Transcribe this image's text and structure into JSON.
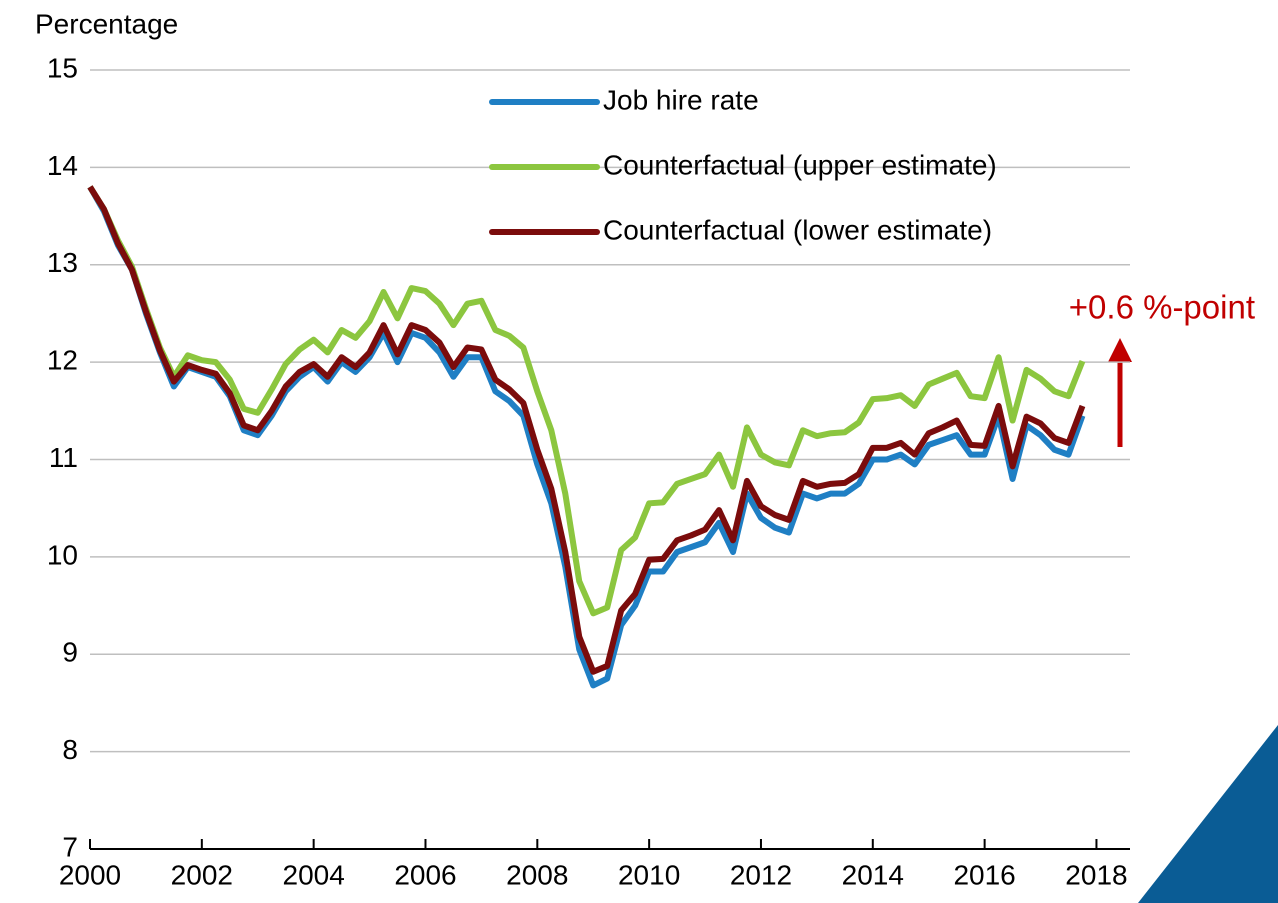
{
  "chart_data": {
    "type": "line",
    "y_label": "Percentage",
    "annotation": "+0.6 %-point",
    "x": [
      2000,
      2000.25,
      2000.5,
      2000.75,
      2001,
      2001.25,
      2001.5,
      2001.75,
      2002,
      2002.25,
      2002.5,
      2002.75,
      2003,
      2003.25,
      2003.5,
      2003.75,
      2004,
      2004.25,
      2004.5,
      2004.75,
      2005,
      2005.25,
      2005.5,
      2005.75,
      2006,
      2006.25,
      2006.5,
      2006.75,
      2007,
      2007.25,
      2007.5,
      2007.75,
      2008,
      2008.25,
      2008.5,
      2008.75,
      2009,
      2009.25,
      2009.5,
      2009.75,
      2010,
      2010.25,
      2010.5,
      2010.75,
      2011,
      2011.25,
      2011.5,
      2011.75,
      2012,
      2012.25,
      2012.5,
      2012.75,
      2013,
      2013.25,
      2013.5,
      2013.75,
      2014,
      2014.25,
      2014.5,
      2014.75,
      2015,
      2015.25,
      2015.5,
      2015.75,
      2016,
      2016.25,
      2016.5,
      2016.75,
      2017,
      2017.25,
      2017.5,
      2017.75
    ],
    "series": [
      {
        "name": "Job hire rate",
        "color": "#1f7fc4",
        "values": [
          13.8,
          13.55,
          13.2,
          12.95,
          12.5,
          12.1,
          11.75,
          11.95,
          11.9,
          11.85,
          11.65,
          11.3,
          11.25,
          11.45,
          11.7,
          11.85,
          11.95,
          11.8,
          12.0,
          11.9,
          12.05,
          12.3,
          12.0,
          12.3,
          12.25,
          12.1,
          11.85,
          12.05,
          12.05,
          11.7,
          11.6,
          11.45,
          10.95,
          10.55,
          9.9,
          9.05,
          8.68,
          8.75,
          9.3,
          9.5,
          9.85,
          9.85,
          10.05,
          10.1,
          10.15,
          10.35,
          10.05,
          10.65,
          10.4,
          10.3,
          10.25,
          10.65,
          10.6,
          10.65,
          10.65,
          10.75,
          11.0,
          11.0,
          11.05,
          10.95,
          11.15,
          11.2,
          11.25,
          11.05,
          11.05,
          11.45,
          10.8,
          11.35,
          11.25,
          11.1,
          11.05,
          11.45
        ]
      },
      {
        "name": "Counterfactual (upper estimate)",
        "color": "#8cc63f",
        "values": [
          13.8,
          13.57,
          13.25,
          12.98,
          12.55,
          12.15,
          11.85,
          12.07,
          12.02,
          12.0,
          11.82,
          11.52,
          11.48,
          11.72,
          11.98,
          12.13,
          12.23,
          12.1,
          12.33,
          12.25,
          12.42,
          12.72,
          12.45,
          12.76,
          12.73,
          12.6,
          12.38,
          12.6,
          12.63,
          12.33,
          12.27,
          12.15,
          11.7,
          11.3,
          10.65,
          9.75,
          9.42,
          9.48,
          10.07,
          10.2,
          10.55,
          10.56,
          10.75,
          10.8,
          10.85,
          11.05,
          10.72,
          11.33,
          11.05,
          10.97,
          10.94,
          11.3,
          11.24,
          11.27,
          11.28,
          11.38,
          11.62,
          11.63,
          11.66,
          11.55,
          11.77,
          11.83,
          11.89,
          11.65,
          11.63,
          12.05,
          11.4,
          11.92,
          11.83,
          11.7,
          11.65,
          12.01
        ]
      },
      {
        "name": "Counterfactual (lower estimate)",
        "color": "#7b0c0c",
        "values": [
          13.8,
          13.57,
          13.22,
          12.95,
          12.52,
          12.12,
          11.8,
          11.97,
          11.92,
          11.88,
          11.68,
          11.35,
          11.3,
          11.5,
          11.75,
          11.9,
          11.98,
          11.85,
          12.05,
          11.95,
          12.1,
          12.38,
          12.08,
          12.38,
          12.33,
          12.2,
          11.95,
          12.15,
          12.13,
          11.82,
          11.72,
          11.58,
          11.1,
          10.7,
          10.05,
          9.18,
          8.82,
          8.88,
          9.45,
          9.62,
          9.97,
          9.98,
          10.17,
          10.22,
          10.28,
          10.48,
          10.17,
          10.78,
          10.52,
          10.43,
          10.38,
          10.78,
          10.72,
          10.75,
          10.76,
          10.85,
          11.12,
          11.12,
          11.17,
          11.05,
          11.27,
          11.33,
          11.4,
          11.15,
          11.14,
          11.55,
          10.93,
          11.44,
          11.37,
          11.22,
          11.17,
          11.55
        ]
      }
    ],
    "xlim": [
      2000,
      2018.6
    ],
    "xticks": [
      2000,
      2002,
      2004,
      2006,
      2008,
      2010,
      2012,
      2014,
      2016,
      2018
    ],
    "ylim": [
      7,
      15
    ],
    "yticks": [
      7,
      8,
      9,
      10,
      11,
      12,
      13,
      14,
      15
    ],
    "grid": true
  }
}
